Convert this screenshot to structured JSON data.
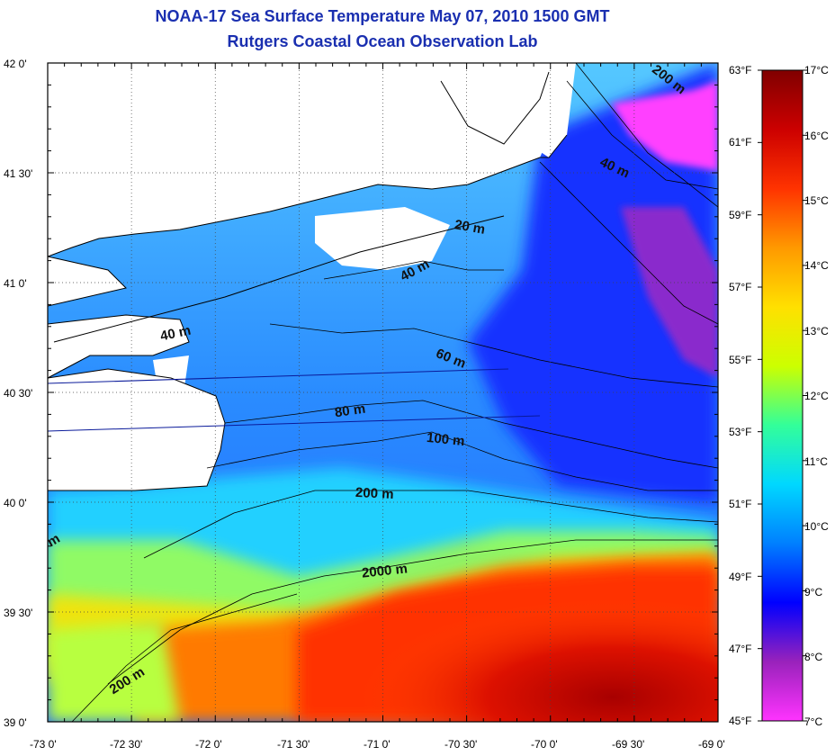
{
  "title": "NOAA-17 Sea Surface Temperature May 07, 2010 1500 GMT",
  "subtitle": "Rutgers Coastal Ocean Observation Lab",
  "lat_labels": [
    "42 0'",
    "41 30'",
    "41 0'",
    "40 30'",
    "40 0'",
    "39 30'",
    "39 0'"
  ],
  "lon_labels": [
    "-73 0'",
    "-72 30'",
    "-72 0'",
    "-71 30'",
    "-71 0'",
    "-70 30'",
    "-70 0'",
    "-69 30'",
    "-69 0'"
  ],
  "fahrenheit_labels": [
    "63°F",
    "61°F",
    "59°F",
    "57°F",
    "55°F",
    "53°F",
    "51°F",
    "49°F",
    "47°F",
    "45°F"
  ],
  "celsius_labels": [
    "17°C",
    "16°C",
    "15°C",
    "14°C",
    "13°C",
    "12°C",
    "11°C",
    "10°C",
    "9°C",
    "8°C",
    "7°C"
  ],
  "contour_labels": {
    "c200_ne": "200 m",
    "c40_ne": "40 m",
    "c20": "20 m",
    "c40_mid": "40 m",
    "c40_w": "40 m",
    "c60": "60 m",
    "c80": "80 m",
    "c100": "100 m",
    "c200_mid": "200 m",
    "c2000": "2000 m",
    "c200_sw": "200 m",
    "cm_w": "m"
  },
  "colorbar_stops": [
    "#ff33ff",
    "#9922bb",
    "#0000ff",
    "#0080ff",
    "#00d8ff",
    "#33ff99",
    "#ccff00",
    "#ffe000",
    "#ff9900",
    "#ff3300",
    "#cc0000",
    "#800000"
  ],
  "land_color": "#ffffff",
  "coastline_color": "#000000",
  "track_color": "#0a1a9a"
}
